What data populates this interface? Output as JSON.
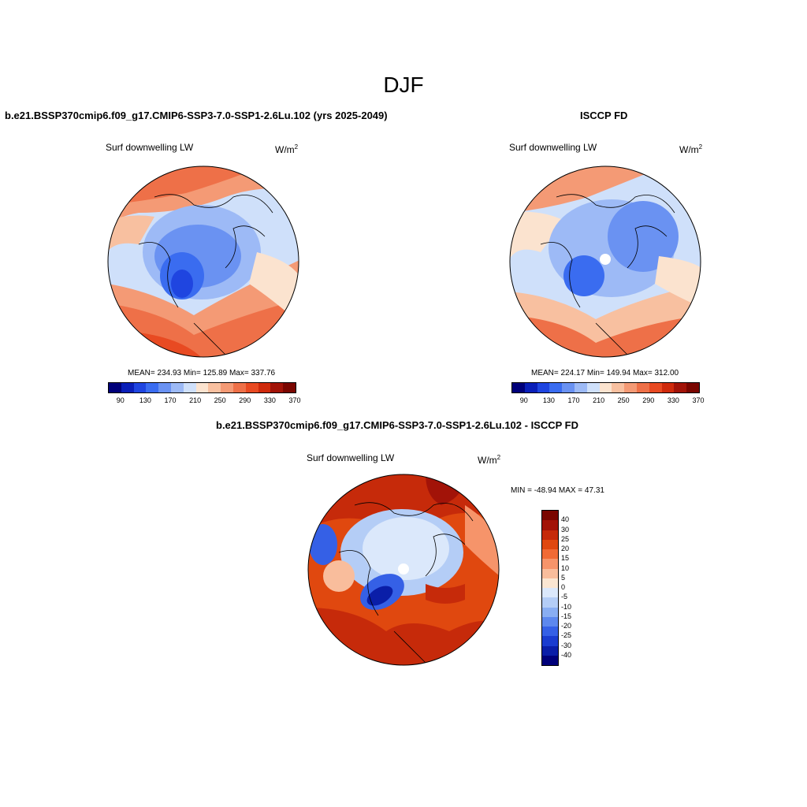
{
  "main_title": "DJF",
  "panels": [
    {
      "title": "b.e21.BSSP370cmip6.f09_g17.CMIP6-SSP3-7.0-SSP1-2.6Lu.102 (yrs 2025-2049)",
      "variable": "Surf downwelling LW",
      "units_base": "W/m",
      "units_exp": "2",
      "stats": "MEAN= 234.93  Min= 125.89  Max= 337.76",
      "colorbar_labels": [
        "90",
        "130",
        "170",
        "210",
        "250",
        "290",
        "330",
        "370"
      ]
    },
    {
      "title": "ISCCP FD",
      "variable": "Surf downwelling LW",
      "units_base": "W/m",
      "units_exp": "2",
      "stats": "MEAN= 224.17  Min= 149.94  Max= 312.00",
      "colorbar_labels": [
        "90",
        "130",
        "170",
        "210",
        "250",
        "290",
        "330",
        "370"
      ]
    },
    {
      "title": "b.e21.BSSP370cmip6.f09_g17.CMIP6-SSP3-7.0-SSP1-2.6Lu.102 - ISCCP FD",
      "variable": "Surf downwelling LW",
      "units_base": "W/m",
      "units_exp": "2",
      "stats": "MIN = -48.94 MAX =  47.31",
      "colorbar_labels": [
        "40",
        "30",
        "25",
        "20",
        "15",
        "10",
        "5",
        "0",
        "-5",
        "-10",
        "-15",
        "-20",
        "-25",
        "-30",
        "-40"
      ]
    }
  ],
  "colors": {
    "abs_scale": [
      "#00007a",
      "#0a1fb8",
      "#1f45e0",
      "#3a6cf0",
      "#6a92f2",
      "#9dbaf6",
      "#cfe0fa",
      "#fbe3cf",
      "#f8c0a0",
      "#f49a75",
      "#ee7048",
      "#e84a22",
      "#cf2a0c",
      "#a21308",
      "#7a0600"
    ],
    "diff_scale": [
      "#7a0600",
      "#a21308",
      "#c62a0a",
      "#e0480f",
      "#f06a35",
      "#f6946a",
      "#f9bd9c",
      "#fbe6d2",
      "#dbe8fb",
      "#b4cdf6",
      "#89aef2",
      "#5d88ee",
      "#3560e6",
      "#1a3cd0",
      "#0a1ea8",
      "#00007a"
    ]
  }
}
